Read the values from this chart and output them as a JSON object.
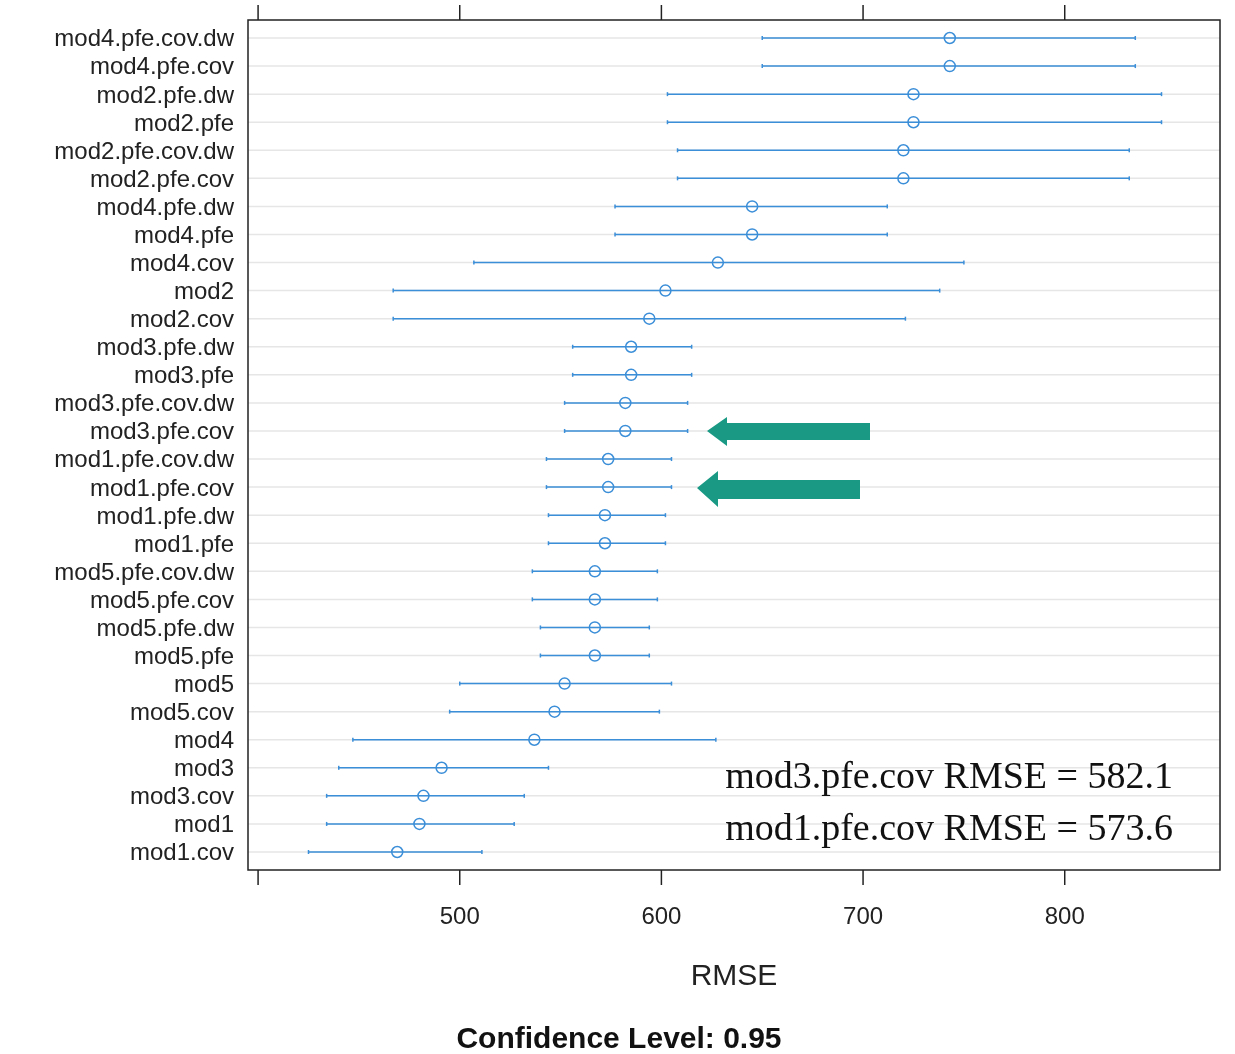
{
  "chart_data": {
    "type": "scatter",
    "orientation": "horizontal",
    "xlabel": "RMSE",
    "color": "#3b8ed8",
    "marker": "circle",
    "grid": "y",
    "categories": [
      "mod4.pfe.cov.dw",
      "mod4.pfe.cov",
      "mod2.pfe.dw",
      "mod2.pfe",
      "mod2.pfe.cov.dw",
      "mod2.pfe.cov",
      "mod4.pfe.dw",
      "mod4.pfe",
      "mod4.cov",
      "mod2",
      "mod2.cov",
      "mod3.pfe.dw",
      "mod3.pfe",
      "mod3.pfe.cov.dw",
      "mod3.pfe.cov",
      "mod1.pfe.cov.dw",
      "mod1.pfe.cov",
      "mod1.pfe.dw",
      "mod1.pfe",
      "mod5.pfe.cov.dw",
      "mod5.pfe.cov",
      "mod5.pfe.dw",
      "mod5.pfe",
      "mod5",
      "mod5.cov",
      "mod4",
      "mod3",
      "mod3.cov",
      "mod1",
      "mod1.cov"
    ],
    "values": [
      743,
      743,
      725,
      725,
      720,
      720,
      645,
      645,
      628,
      602,
      594,
      585,
      585,
      582.1,
      582.1,
      573.6,
      573.6,
      572,
      572,
      567,
      567,
      567,
      567,
      552,
      547,
      537,
      491,
      482,
      480,
      469
    ],
    "errors": [
      [
        650,
        835
      ],
      [
        650,
        835
      ],
      [
        603,
        848
      ],
      [
        603,
        848
      ],
      [
        608,
        832
      ],
      [
        608,
        832
      ],
      [
        577,
        712
      ],
      [
        577,
        712
      ],
      [
        507,
        750
      ],
      [
        467,
        738
      ],
      [
        467,
        721
      ],
      [
        556,
        615
      ],
      [
        556,
        615
      ],
      [
        552,
        613
      ],
      [
        552,
        613
      ],
      [
        543,
        605
      ],
      [
        543,
        605
      ],
      [
        544,
        602
      ],
      [
        544,
        602
      ],
      [
        536,
        598
      ],
      [
        536,
        598
      ],
      [
        540,
        594
      ],
      [
        540,
        594
      ],
      [
        500,
        605
      ],
      [
        495,
        599
      ],
      [
        447,
        627
      ],
      [
        440,
        544
      ],
      [
        434,
        532
      ],
      [
        434,
        527
      ],
      [
        425,
        511
      ]
    ],
    "xlim": [
      395,
      877
    ],
    "xticks": [
      {
        "value": 400,
        "label": null
      },
      500,
      600,
      700,
      800
    ],
    "annotations": [
      "mod3.pfe.cov RMSE = 582.1",
      "mod1.pfe.cov RMSE = 573.6",
      "Confidence Level: 0.95"
    ]
  }
}
